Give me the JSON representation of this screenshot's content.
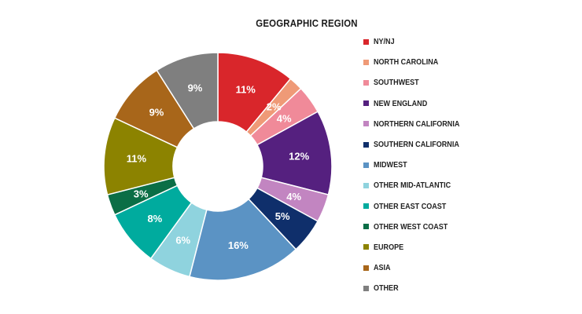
{
  "chart_data": {
    "type": "pie",
    "title": "GEOGRAPHIC REGION",
    "donut": true,
    "categories": [
      "NY/NJ",
      "NORTH CAROLINA",
      "SOUTHWEST",
      "NEW ENGLAND",
      "NORTHERN CALIFORNIA",
      "SOUTHERN CALIFORNIA",
      "MIDWEST",
      "OTHER MID-ATLANTIC",
      "OTHER EAST COAST",
      "OTHER WEST COAST",
      "EUROPE",
      "ASIA",
      "OTHER"
    ],
    "values": [
      11,
      2,
      4,
      12,
      4,
      5,
      16,
      6,
      8,
      3,
      11,
      9,
      9
    ],
    "labels": [
      "11%",
      "2%",
      "4%",
      "12%",
      "4%",
      "5%",
      "16%",
      "6%",
      "8%",
      "3%",
      "11%",
      "9%",
      "9%"
    ],
    "colors": [
      "#d9262b",
      "#ef9a77",
      "#f08a99",
      "#55207f",
      "#c285c1",
      "#0f2f6b",
      "#5b93c4",
      "#8fd3de",
      "#00ab9e",
      "#0b6e46",
      "#8c8300",
      "#a8661a",
      "#7f7f7f"
    ],
    "legend_position": "right",
    "start_angle": "12 o'clock",
    "direction": "clockwise"
  }
}
